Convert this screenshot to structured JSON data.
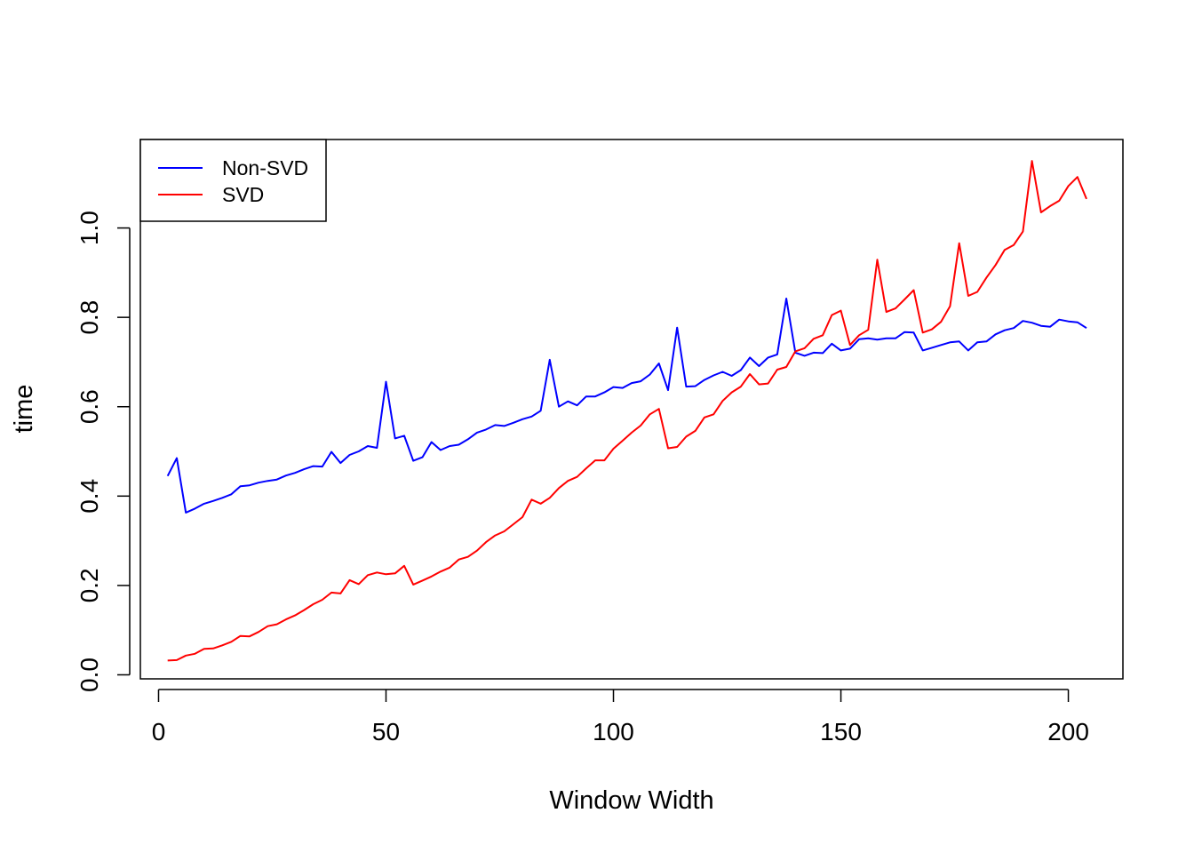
{
  "chart_data": {
    "type": "line",
    "title": "",
    "xlabel": "Window Width",
    "ylabel": "time",
    "xlim": [
      -4,
      212
    ],
    "ylim": [
      -0.009,
      1.198
    ],
    "xticks": [
      0,
      50,
      100,
      150,
      200
    ],
    "xtick_labels": [
      "0",
      "50",
      "100",
      "150",
      "200"
    ],
    "yticks": [
      0.0,
      0.2,
      0.4,
      0.6,
      0.8,
      1.0
    ],
    "ytick_labels": [
      "0.0",
      "0.2",
      "0.4",
      "0.6",
      "0.8",
      "1.0"
    ],
    "grid": false,
    "legend": "top-left",
    "x": [
      2,
      4,
      6,
      8,
      10,
      12,
      14,
      16,
      18,
      20,
      22,
      24,
      26,
      28,
      30,
      32,
      34,
      36,
      38,
      40,
      42,
      44,
      46,
      48,
      50,
      52,
      54,
      56,
      58,
      60,
      62,
      64,
      66,
      68,
      70,
      72,
      74,
      76,
      78,
      80,
      82,
      84,
      86,
      88,
      90,
      92,
      94,
      96,
      98,
      100,
      102,
      104,
      106,
      108,
      110,
      112,
      114,
      116,
      118,
      120,
      122,
      124,
      126,
      128,
      130,
      132,
      134,
      136,
      138,
      140,
      142,
      144,
      146,
      148,
      150,
      152,
      154,
      156,
      158,
      160,
      162,
      164,
      166,
      168,
      170,
      172,
      174,
      176,
      178,
      180,
      182,
      184,
      186,
      188,
      190,
      192,
      194,
      196,
      198,
      200,
      202,
      204
    ],
    "series": [
      {
        "name": "Non-SVD",
        "color": "#0000ff",
        "values": [
          0.445,
          0.485,
          0.363,
          0.372,
          0.383,
          0.389,
          0.396,
          0.404,
          0.422,
          0.424,
          0.43,
          0.434,
          0.437,
          0.446,
          0.452,
          0.46,
          0.467,
          0.466,
          0.499,
          0.474,
          0.492,
          0.5,
          0.512,
          0.508,
          0.656,
          0.529,
          0.535,
          0.479,
          0.487,
          0.521,
          0.503,
          0.512,
          0.515,
          0.527,
          0.542,
          0.549,
          0.559,
          0.557,
          0.564,
          0.572,
          0.578,
          0.591,
          0.705,
          0.6,
          0.612,
          0.603,
          0.623,
          0.623,
          0.632,
          0.644,
          0.642,
          0.653,
          0.657,
          0.672,
          0.697,
          0.637,
          0.777,
          0.645,
          0.646,
          0.66,
          0.67,
          0.678,
          0.669,
          0.682,
          0.71,
          0.691,
          0.71,
          0.717,
          0.842,
          0.721,
          0.714,
          0.721,
          0.72,
          0.741,
          0.726,
          0.73,
          0.751,
          0.753,
          0.75,
          0.753,
          0.753,
          0.767,
          0.766,
          0.726,
          0.732,
          0.738,
          0.744,
          0.746,
          0.726,
          0.744,
          0.746,
          0.762,
          0.771,
          0.776,
          0.792,
          0.788,
          0.781,
          0.779,
          0.795,
          0.791,
          0.789,
          0.776
        ]
      },
      {
        "name": "SVD",
        "color": "#ff0000",
        "values": [
          0.032,
          0.033,
          0.043,
          0.047,
          0.058,
          0.059,
          0.066,
          0.074,
          0.087,
          0.086,
          0.096,
          0.109,
          0.113,
          0.124,
          0.133,
          0.145,
          0.158,
          0.168,
          0.184,
          0.182,
          0.212,
          0.203,
          0.223,
          0.229,
          0.225,
          0.227,
          0.244,
          0.202,
          0.211,
          0.22,
          0.231,
          0.24,
          0.258,
          0.264,
          0.278,
          0.297,
          0.312,
          0.321,
          0.337,
          0.353,
          0.392,
          0.383,
          0.396,
          0.418,
          0.434,
          0.443,
          0.462,
          0.48,
          0.48,
          0.506,
          0.524,
          0.542,
          0.558,
          0.583,
          0.595,
          0.507,
          0.51,
          0.533,
          0.546,
          0.576,
          0.583,
          0.613,
          0.632,
          0.645,
          0.673,
          0.65,
          0.652,
          0.683,
          0.689,
          0.724,
          0.731,
          0.752,
          0.76,
          0.805,
          0.815,
          0.738,
          0.76,
          0.772,
          0.929,
          0.812,
          0.82,
          0.84,
          0.861,
          0.766,
          0.773,
          0.79,
          0.825,
          0.966,
          0.848,
          0.857,
          0.889,
          0.917,
          0.951,
          0.962,
          0.992,
          1.15,
          1.035,
          1.049,
          1.061,
          1.094,
          1.114,
          1.065
        ]
      }
    ]
  }
}
